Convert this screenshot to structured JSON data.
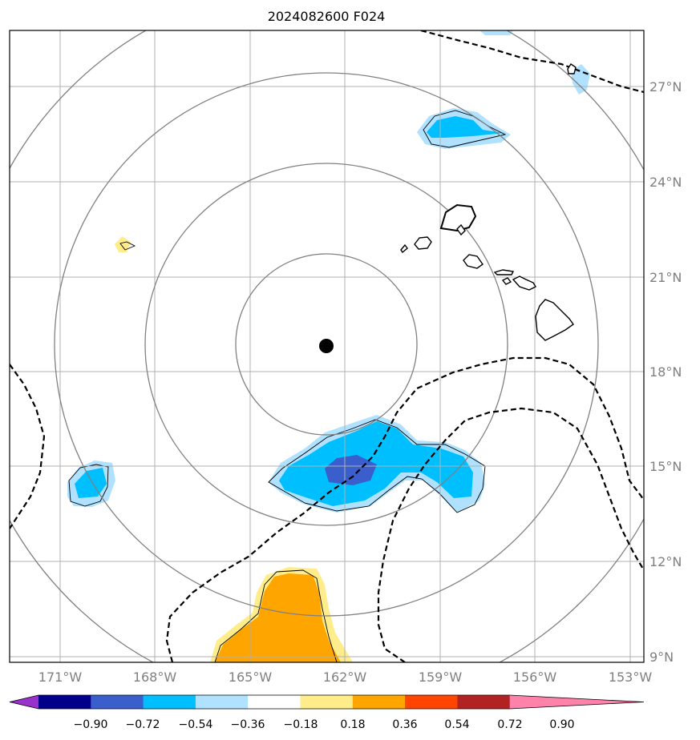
{
  "title": "2024082600 F024",
  "latitude_labels": [
    "27°N",
    "24°N",
    "21°N",
    "18°N",
    "15°N",
    "12°N",
    "9°N"
  ],
  "longitude_labels": [
    "171°W",
    "168°W",
    "165°W",
    "162°W",
    "159°W",
    "156°W",
    "153°W"
  ],
  "colorbar": {
    "tick_labels": [
      "−0.90",
      "−0.72",
      "−0.54",
      "−0.36",
      "−0.18",
      "0.18",
      "0.36",
      "0.54",
      "0.72",
      "0.90"
    ],
    "colors": [
      "#9932cc",
      "#00008b",
      "#3a5fcd",
      "#00bfff",
      "#b0e2ff",
      "#ffffff",
      "#ffec8b",
      "#ffa500",
      "#ff4500",
      "#b22222",
      "#ff82ab"
    ]
  },
  "map": {
    "center_marker": "black-dot",
    "range_rings": 4,
    "contour_line_style": "dashed",
    "land_outline_color": "#000000",
    "grid_color": "#b0b0b0",
    "ring_color": "#808080"
  }
}
